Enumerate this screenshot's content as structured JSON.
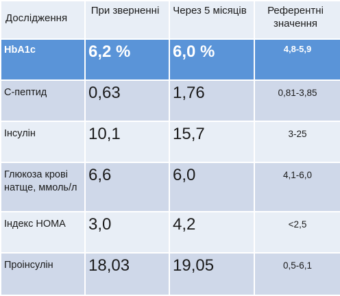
{
  "table": {
    "headers": [
      "Дослідження",
      "При зверненні",
      "Через 5 місяців",
      "Референтні значення"
    ],
    "rows": [
      {
        "name": "HbA1c",
        "at_visit": "6,2 %",
        "after_5_months": "6,0 %",
        "reference": "4,8-5,9"
      },
      {
        "name": "С-пептид",
        "at_visit": "0,63",
        "after_5_months": "1,76",
        "reference": "0,81-3,85"
      },
      {
        "name": "Інсулін",
        "at_visit": "10,1",
        "after_5_months": "15,7",
        "reference": "3-25"
      },
      {
        "name": "Глюкоза крові натще, ммоль/л",
        "at_visit": "6,6",
        "after_5_months": "6,0",
        "reference": "4,1-6,0"
      },
      {
        "name": "Індекс HOMA",
        "at_visit": "3,0",
        "after_5_months": "4,2",
        "reference": "<2,5"
      },
      {
        "name": "Проінсулін",
        "at_visit": "18,03",
        "after_5_months": "19,05",
        "reference": "0,5-6,1"
      }
    ]
  },
  "colors": {
    "header_bg": "#e8eef6",
    "accent_row_bg": "#5a94d8",
    "row_light": "#e8eef6",
    "row_dark": "#cfd8e9"
  }
}
